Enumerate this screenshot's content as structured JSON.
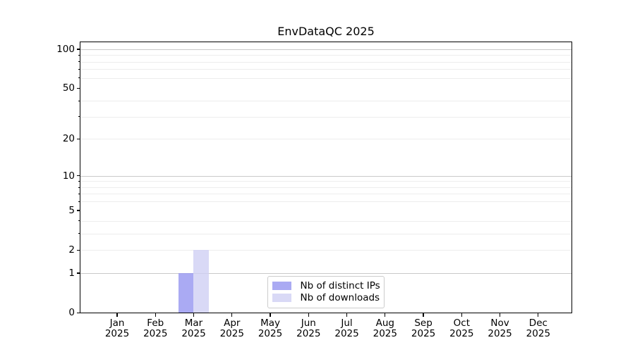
{
  "chart_data": {
    "type": "bar",
    "title": "EnvDataQC 2025",
    "categories": [
      "Jan 2025",
      "Feb 2025",
      "Mar 2025",
      "Apr 2025",
      "May 2025",
      "Jun 2025",
      "Jul 2025",
      "Aug 2025",
      "Sep 2025",
      "Oct 2025",
      "Nov 2025",
      "Dec 2025"
    ],
    "series": [
      {
        "name": "Nb of distinct IPs",
        "color": "rgba(149,149,240,0.8)",
        "values": [
          0,
          0,
          1,
          0,
          0,
          0,
          0,
          0,
          0,
          0,
          0,
          0
        ]
      },
      {
        "name": "Nb of downloads",
        "color": "rgba(207,207,244,0.8)",
        "values": [
          0,
          0,
          2,
          0,
          0,
          0,
          0,
          0,
          0,
          0,
          0,
          0
        ]
      }
    ],
    "xlabel": "",
    "ylabel": "",
    "yscale": "log1p",
    "ylim": [
      0,
      118
    ],
    "y_tick_values": [
      0,
      1,
      2,
      5,
      10,
      20,
      50,
      100
    ],
    "y_tick_labels": [
      "0",
      "1",
      "2",
      "5",
      "10",
      "20",
      "50",
      "100"
    ],
    "y_major_gridlines": [
      1,
      10,
      100
    ],
    "y_minor_gridlines": [
      2,
      3,
      4,
      6,
      7,
      8,
      9,
      20,
      30,
      40,
      60,
      70,
      80,
      90
    ],
    "grid": "horizontal",
    "legend_position": "lower center",
    "colors": {
      "axis": "#000000",
      "major_grid": "#c9c9c9",
      "minor_grid": "#ededed",
      "legend_border": "#cccccc"
    }
  }
}
